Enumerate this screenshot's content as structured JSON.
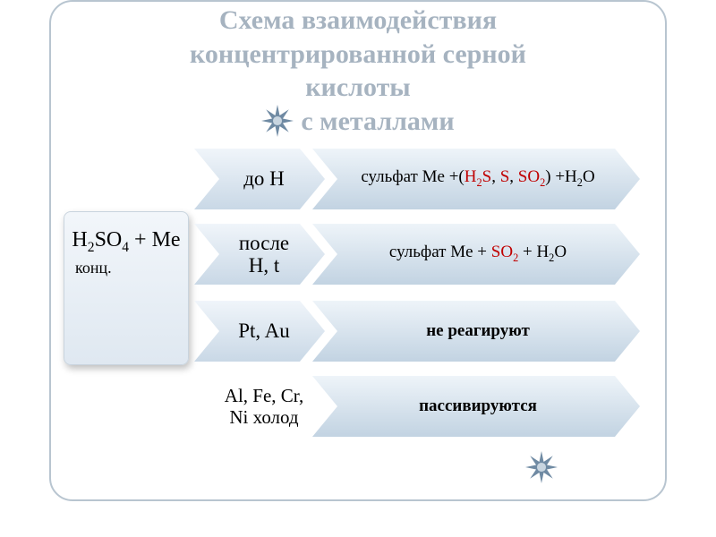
{
  "title": {
    "line1": "Схема взаимодействия",
    "line2": "концентрированной серной",
    "line3": "кислоты",
    "line4": "с металлами",
    "fontsize": 30,
    "color": "#a6b3c0"
  },
  "left_box": {
    "formula_html": "H<span class='sub'>2</span>SO<span class='sub'>4</span> + Me",
    "konc": "конц."
  },
  "rows": [
    {
      "condition_html": "до H",
      "result_html": "сульфат Me +(<span class='red'>H<span class='sub'>2</span>S</span>, <span class='red'>S</span>, <span class='red'>SO<span class='sub'>2</span></span>) +H<span class='sub'>2</span>O",
      "condition_plain": false
    },
    {
      "condition_html": "после<br>H, t",
      "result_html": "сульфат Me + <span class='red'>SO<span class='sub'>2</span></span> + H<span class='sub'>2</span>O",
      "condition_plain": false
    },
    {
      "condition_html": "Pt, Au",
      "result_html": "<span class='bold'>не реагируют</span>",
      "condition_plain": false
    },
    {
      "condition_html": "Al, Fe, Cr,<br>Ni холод",
      "result_html": "<span class='bold'>пассивируются</span>",
      "condition_plain": true
    }
  ],
  "colors": {
    "chev_grad_top": "#f0f5fa",
    "chev_grad_bottom": "#c9d8e6",
    "large_grad_top": "#eef4f9",
    "large_grad_bottom": "#c2d3e2",
    "border": "#b8c5d0",
    "red": "#c00000",
    "star_fill": "#6f8aa3",
    "star_center": "#c8d5e0",
    "background": "#ffffff"
  },
  "star": {
    "size": 36,
    "points": 8
  }
}
